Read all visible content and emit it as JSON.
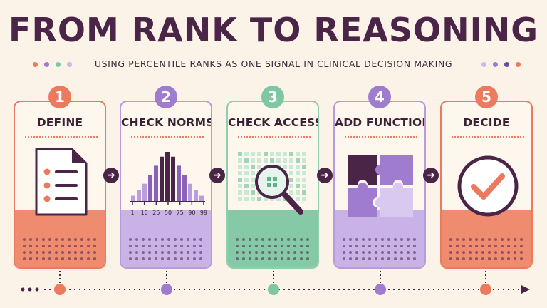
{
  "title": "FROM RANK TO REASONING",
  "subtitle": "USING PERCENTILE RANKS AS ONE SIGNAL IN CLINICAL DECISION MAKING",
  "colors": {
    "coral": "#ec7a5e",
    "purple": "#9f7ccf",
    "mint": "#7fc7a3",
    "dark": "#4a2548",
    "light_purple": "#cdb9e6"
  },
  "steps": [
    {
      "number": "1",
      "label": "DEFINE",
      "icon": "document-list-icon"
    },
    {
      "number": "2",
      "label": "CHECK NORMS",
      "icon": "bell-curve-histogram-icon"
    },
    {
      "number": "3",
      "label": "CHECK ACCESS",
      "icon": "magnifying-glass-icon"
    },
    {
      "number": "4",
      "label": "ADD FUNCTION",
      "icon": "puzzle-icon"
    },
    {
      "number": "5",
      "label": "DECIDE",
      "icon": "checkmark-circle-icon"
    }
  ],
  "histogram": {
    "tick_labels": [
      "1",
      "10",
      "25",
      "50",
      "75",
      "90",
      "99"
    ],
    "bars": [
      1,
      2,
      3,
      4.5,
      6,
      7.5,
      8.3,
      7.5,
      6,
      4.5,
      3,
      2,
      1
    ]
  }
}
